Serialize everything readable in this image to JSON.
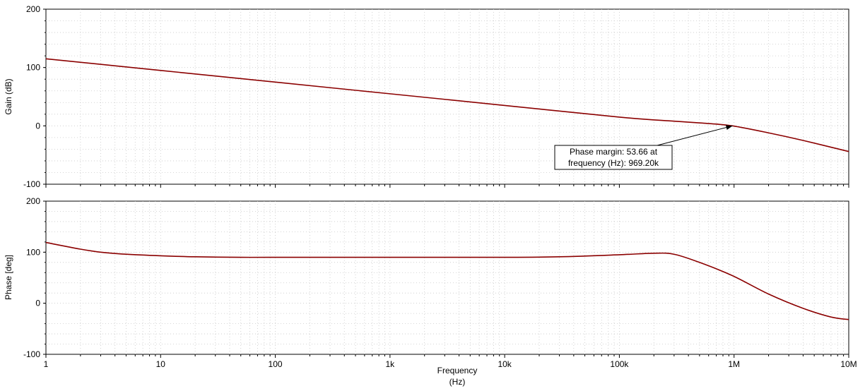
{
  "chart_data": [
    {
      "type": "line",
      "ylabel": "Gain (dB)",
      "xscale": "log",
      "xlim": [
        1,
        10000000
      ],
      "ylim": [
        -100,
        200
      ],
      "yticks": [
        "200",
        "100",
        "0",
        "-100"
      ],
      "grid": true,
      "series": [
        {
          "color": "#8b0000",
          "x": [
            1,
            10,
            100,
            1000,
            10000,
            100000,
            300000,
            600000,
            969200,
            2000000,
            4000000,
            10000000
          ],
          "y": [
            115,
            95,
            75,
            55,
            35,
            15,
            8,
            4,
            0,
            -12,
            -25,
            -44
          ]
        }
      ],
      "annotation": {
        "line1": "Phase margin: 53.66  at",
        "line2": "frequency (Hz): 969.20k",
        "x": 969200,
        "y": 0
      }
    },
    {
      "type": "line",
      "ylabel": "Phase [deg]",
      "xlabel_line1": "Frequency",
      "xlabel_line2": "(Hz)",
      "xscale": "log",
      "xlim": [
        1,
        10000000
      ],
      "ylim": [
        -100,
        200
      ],
      "yticks": [
        "200",
        "100",
        "0",
        "-100"
      ],
      "xticks": [
        "1",
        "10",
        "100",
        "1k",
        "10k",
        "100k",
        "1M",
        "10M"
      ],
      "grid": true,
      "series": [
        {
          "color": "#8b0000",
          "x": [
            1,
            2,
            3,
            5,
            10,
            20,
            50,
            100,
            1000,
            10000,
            30000,
            100000,
            200000,
            300000,
            500000,
            969200,
            2000000,
            4000000,
            7000000,
            10000000
          ],
          "y": [
            119,
            106,
            100,
            96,
            93,
            91,
            90,
            90,
            90,
            90,
            91,
            95,
            98,
            96,
            80,
            54,
            18,
            -10,
            -27,
            -32
          ]
        }
      ]
    }
  ]
}
